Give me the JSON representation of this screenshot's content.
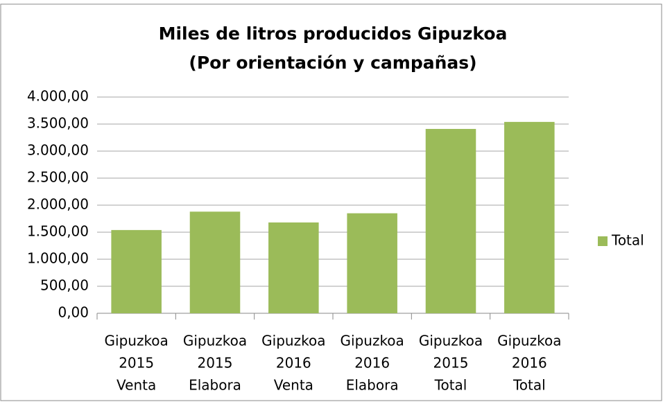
{
  "chart_data": {
    "type": "bar",
    "title": [
      "Miles de litros producidos  Gipuzkoa",
      "(Por orientación y campañas)"
    ],
    "categories": [
      [
        "Gipuzkoa",
        "2015",
        "Venta"
      ],
      [
        "Gipuzkoa",
        "2015",
        "Elabora"
      ],
      [
        "Gipuzkoa",
        "2016",
        "Venta"
      ],
      [
        "Gipuzkoa",
        "2016",
        "Elabora"
      ],
      [
        "Gipuzkoa",
        "2015",
        "Total"
      ],
      [
        "Gipuzkoa",
        "2016",
        "Total"
      ]
    ],
    "series": [
      {
        "name": "Total",
        "color": "#9bbb59",
        "values": [
          1540,
          1880,
          1680,
          1850,
          3410,
          3540
        ]
      }
    ],
    "ylim": [
      0,
      4000
    ],
    "yticks": [
      {
        "value": 0,
        "label": "0,00"
      },
      {
        "value": 500,
        "label": "500,00"
      },
      {
        "value": 1000,
        "label": "1.000,00"
      },
      {
        "value": 1500,
        "label": "1.500,00"
      },
      {
        "value": 2000,
        "label": "2.000,00"
      },
      {
        "value": 2500,
        "label": "2.500,00"
      },
      {
        "value": 3000,
        "label": "3.000,00"
      },
      {
        "value": 3500,
        "label": "3.500,00"
      },
      {
        "value": 4000,
        "label": "4.000,00"
      }
    ],
    "grid": true,
    "legend": "right"
  }
}
